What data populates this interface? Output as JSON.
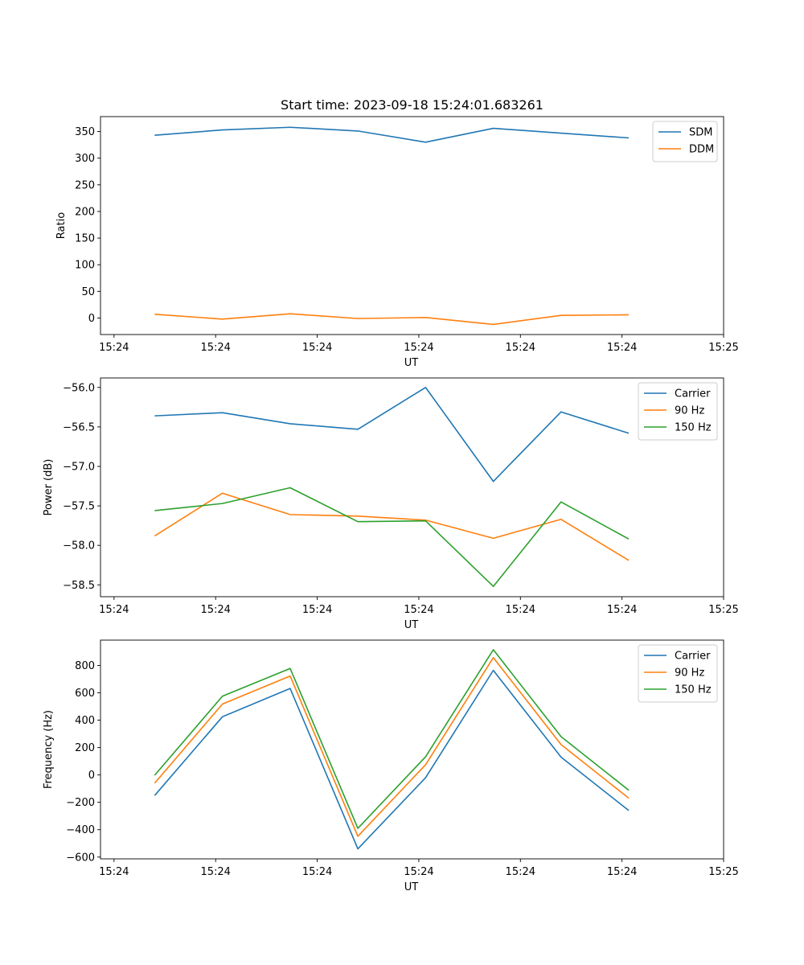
{
  "chart_data": [
    {
      "type": "line",
      "title": "Start time: 2023-09-18 15:24:01.683261",
      "xlabel": "UT",
      "ylabel": "Ratio",
      "x": [
        1,
        2,
        3,
        4,
        5,
        6,
        7,
        8
      ],
      "xlim": [
        0.2,
        9.4
      ],
      "xticks": [
        0.4,
        1.9,
        3.4,
        4.9,
        6.4,
        7.9,
        9.4
      ],
      "xtick_labels": [
        "15:24",
        "15:24",
        "15:24",
        "15:24",
        "15:24",
        "15:24",
        "15:25"
      ],
      "ylim": [
        -31,
        378
      ],
      "yticks": [
        0,
        50,
        100,
        150,
        200,
        250,
        300,
        350
      ],
      "ytick_labels": [
        "0",
        "50",
        "100",
        "150",
        "200",
        "250",
        "300",
        "350"
      ],
      "legend_position": "top-right",
      "series": [
        {
          "name": "SDM",
          "color": "#1f77b4",
          "values": [
            343,
            353,
            358,
            351,
            330,
            356,
            347,
            338
          ]
        },
        {
          "name": "DDM",
          "color": "#ff7f0e",
          "values": [
            7,
            -2,
            8,
            -1,
            1,
            -12,
            5,
            6
          ]
        }
      ]
    },
    {
      "type": "line",
      "title": "",
      "xlabel": "UT",
      "ylabel": "Power (dB)",
      "x": [
        1,
        2,
        3,
        4,
        5,
        6,
        7,
        8
      ],
      "xlim": [
        0.2,
        9.4
      ],
      "xticks": [
        0.4,
        1.9,
        3.4,
        4.9,
        6.4,
        7.9,
        9.4
      ],
      "xtick_labels": [
        "15:24",
        "15:24",
        "15:24",
        "15:24",
        "15:24",
        "15:24",
        "15:25"
      ],
      "ylim": [
        -58.65,
        -55.88
      ],
      "yticks": [
        -58.5,
        -58.0,
        -57.5,
        -57.0,
        -56.5,
        -56.0
      ],
      "ytick_labels": [
        "−58.5",
        "−58.0",
        "−57.5",
        "−57.0",
        "−56.5",
        "−56.0"
      ],
      "legend_position": "top-right",
      "series": [
        {
          "name": "Carrier",
          "color": "#1f77b4",
          "values": [
            -56.36,
            -56.32,
            -56.46,
            -56.53,
            -56.0,
            -57.19,
            -56.31,
            -56.58
          ]
        },
        {
          "name": "90 Hz",
          "color": "#ff7f0e",
          "values": [
            -57.88,
            -57.34,
            -57.61,
            -57.63,
            -57.68,
            -57.91,
            -57.67,
            -58.19
          ]
        },
        {
          "name": "150 Hz",
          "color": "#2ca02c",
          "values": [
            -57.56,
            -57.47,
            -57.27,
            -57.7,
            -57.69,
            -58.52,
            -57.45,
            -57.92
          ]
        }
      ]
    },
    {
      "type": "line",
      "title": "",
      "xlabel": "UT",
      "ylabel": "Frequency (Hz)",
      "x": [
        1,
        2,
        3,
        4,
        5,
        6,
        7,
        8
      ],
      "xlim": [
        0.2,
        9.4
      ],
      "xticks": [
        0.4,
        1.9,
        3.4,
        4.9,
        6.4,
        7.9,
        9.4
      ],
      "xtick_labels": [
        "15:24",
        "15:24",
        "15:24",
        "15:24",
        "15:24",
        "15:24",
        "15:25"
      ],
      "ylim": [
        -613,
        985
      ],
      "yticks": [
        -600,
        -400,
        -200,
        0,
        200,
        400,
        600,
        800
      ],
      "ytick_labels": [
        "−600",
        "−400",
        "−200",
        "0",
        "200",
        "400",
        "600",
        "800"
      ],
      "legend_position": "top-right",
      "series": [
        {
          "name": "Carrier",
          "color": "#1f77b4",
          "values": [
            -150,
            425,
            632,
            -540,
            -20,
            764,
            130,
            -260
          ]
        },
        {
          "name": "90 Hz",
          "color": "#ff7f0e",
          "values": [
            -60,
            518,
            723,
            -448,
            75,
            857,
            222,
            -170
          ]
        },
        {
          "name": "150 Hz",
          "color": "#2ca02c",
          "values": [
            -2,
            575,
            778,
            -390,
            133,
            915,
            280,
            -112
          ]
        }
      ]
    }
  ]
}
